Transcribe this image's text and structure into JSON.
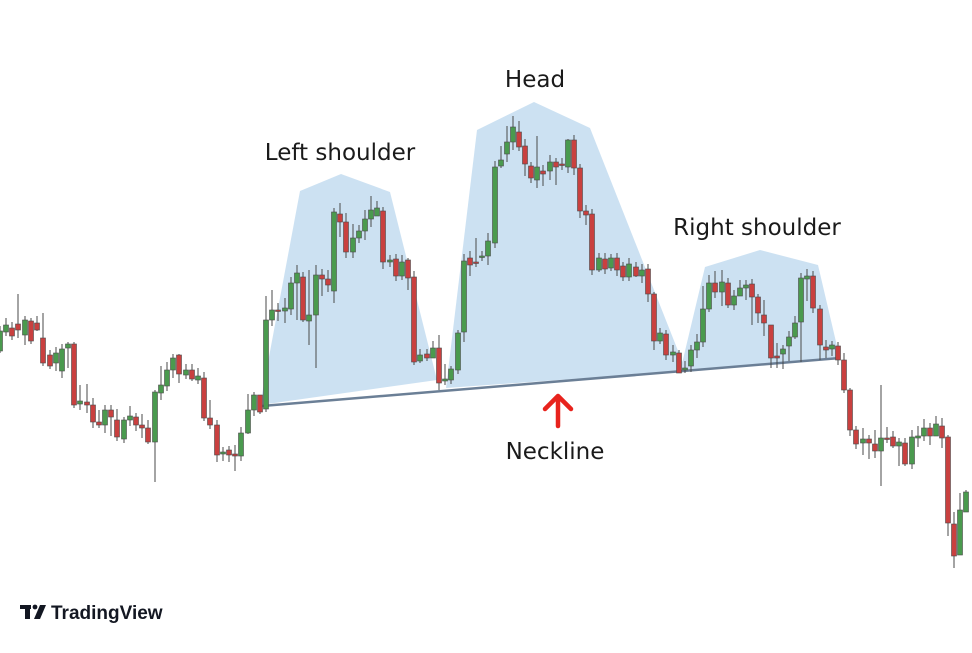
{
  "chart_data": {
    "type": "candlestick",
    "pattern": "head-and-shoulders",
    "colors": {
      "up": "#4a9a4e",
      "down": "#c9403f",
      "wick": "#4a4a4a",
      "pattern_fill": "#c9dff1",
      "neckline": "#6b7f96",
      "arrow": "#e8231d"
    },
    "annotations": {
      "left_shoulder": "Left shoulder",
      "head": "Head",
      "right_shoulder": "Right shoulder",
      "neckline": "Neckline"
    },
    "candles": [
      [
        0,
        351,
        331,
        353,
        326
      ],
      [
        6,
        332,
        325,
        336,
        318
      ],
      [
        12,
        328,
        336,
        340,
        322
      ],
      [
        18,
        324,
        330,
        338,
        294
      ],
      [
        25,
        335,
        320,
        345,
        316
      ],
      [
        31,
        321,
        341,
        344,
        318
      ],
      [
        37,
        323,
        330,
        331,
        316
      ],
      [
        43,
        338,
        363,
        366,
        313
      ],
      [
        50,
        355,
        366,
        369,
        350
      ],
      [
        56,
        363,
        353,
        371,
        347
      ],
      [
        62,
        371,
        349,
        378,
        344
      ],
      [
        68,
        348,
        344,
        368,
        342
      ],
      [
        74,
        344,
        405,
        408,
        342
      ],
      [
        80,
        404,
        401,
        410,
        385
      ],
      [
        87,
        402,
        405,
        413,
        384
      ],
      [
        93,
        405,
        422,
        428,
        398
      ],
      [
        99,
        422,
        425,
        428,
        410
      ],
      [
        105,
        425,
        410,
        433,
        405
      ],
      [
        111,
        410,
        417,
        436,
        405
      ],
      [
        117,
        420,
        437,
        441,
        409
      ],
      [
        124,
        439,
        420,
        443,
        417
      ],
      [
        130,
        420,
        416,
        426,
        406
      ],
      [
        136,
        417,
        425,
        431,
        413
      ],
      [
        142,
        425,
        428,
        438,
        414
      ],
      [
        148,
        428,
        442,
        444,
        420
      ],
      [
        155,
        442,
        392,
        482,
        390
      ],
      [
        161,
        393,
        385,
        400,
        366
      ],
      [
        167,
        386,
        370,
        391,
        362
      ],
      [
        173,
        370,
        358,
        378,
        354
      ],
      [
        179,
        355,
        374,
        383,
        354
      ],
      [
        186,
        375,
        370,
        379,
        364
      ],
      [
        192,
        370,
        379,
        381,
        364
      ],
      [
        198,
        380,
        376,
        384,
        368
      ],
      [
        204,
        378,
        418,
        421,
        372
      ],
      [
        210,
        418,
        425,
        429,
        400
      ],
      [
        217,
        425,
        455,
        462,
        420
      ],
      [
        223,
        454,
        452,
        461,
        447
      ],
      [
        229,
        450,
        455,
        462,
        446
      ],
      [
        235,
        454,
        456,
        471,
        445
      ],
      [
        241,
        456,
        433,
        461,
        427
      ],
      [
        248,
        433,
        410,
        434,
        394
      ],
      [
        254,
        410,
        395,
        416,
        392
      ],
      [
        260,
        395,
        412,
        414,
        395
      ],
      [
        266,
        409,
        320,
        412,
        296
      ],
      [
        272,
        320,
        310,
        326,
        290
      ],
      [
        278,
        310,
        311,
        321,
        303
      ],
      [
        285,
        311,
        308,
        323,
        298
      ],
      [
        291,
        309,
        283,
        315,
        277
      ],
      [
        297,
        283,
        273,
        320,
        265
      ],
      [
        303,
        277,
        320,
        322,
        272
      ],
      [
        309,
        321,
        315,
        345,
        270
      ],
      [
        316,
        315,
        275,
        368,
        265
      ],
      [
        322,
        275,
        279,
        296,
        269
      ],
      [
        328,
        279,
        285,
        292,
        270
      ],
      [
        334,
        291,
        212,
        303,
        208
      ],
      [
        340,
        214,
        222,
        237,
        203
      ],
      [
        346,
        222,
        252,
        258,
        213
      ],
      [
        353,
        252,
        238,
        258,
        224
      ],
      [
        359,
        238,
        231,
        243,
        225
      ],
      [
        365,
        231,
        219,
        240,
        210
      ],
      [
        371,
        219,
        210,
        227,
        196
      ],
      [
        377,
        216,
        208,
        215,
        201
      ],
      [
        383,
        211,
        262,
        269,
        207
      ],
      [
        390,
        262,
        260,
        267,
        255
      ],
      [
        396,
        259,
        276,
        281,
        254
      ],
      [
        402,
        276,
        262,
        280,
        255
      ],
      [
        408,
        260,
        278,
        290,
        258
      ],
      [
        414,
        277,
        362,
        365,
        271
      ],
      [
        420,
        361,
        355,
        363,
        349
      ],
      [
        427,
        354,
        358,
        361,
        349
      ],
      [
        433,
        358,
        348,
        358,
        341
      ],
      [
        439,
        348,
        383,
        390,
        335
      ],
      [
        445,
        381,
        379,
        385,
        364
      ],
      [
        451,
        380,
        369,
        384,
        366
      ],
      [
        458,
        370,
        333,
        374,
        330
      ],
      [
        464,
        332,
        261,
        342,
        254
      ],
      [
        470,
        258,
        265,
        276,
        251
      ],
      [
        476,
        262,
        262,
        267,
        238
      ],
      [
        482,
        257,
        256,
        261,
        251
      ],
      [
        488,
        256,
        241,
        265,
        233
      ],
      [
        495,
        243,
        167,
        248,
        161
      ],
      [
        501,
        166,
        160,
        168,
        146
      ],
      [
        507,
        154,
        142,
        162,
        126
      ],
      [
        513,
        142,
        127,
        150,
        116
      ],
      [
        519,
        132,
        147,
        151,
        121
      ],
      [
        525,
        146,
        164,
        176,
        139
      ],
      [
        531,
        166,
        178,
        183,
        162
      ],
      [
        537,
        180,
        167,
        188,
        136
      ],
      [
        543,
        171,
        174,
        186,
        165
      ],
      [
        550,
        171,
        162,
        180,
        155
      ],
      [
        556,
        162,
        167,
        185,
        158
      ],
      [
        562,
        164,
        165,
        170,
        158
      ],
      [
        568,
        167,
        140,
        173,
        139
      ],
      [
        574,
        140,
        168,
        175,
        135
      ],
      [
        580,
        168,
        211,
        218,
        164
      ],
      [
        586,
        211,
        215,
        225,
        205
      ],
      [
        592,
        214,
        270,
        275,
        209
      ],
      [
        599,
        270,
        258,
        272,
        253
      ],
      [
        605,
        259,
        269,
        274,
        253
      ],
      [
        611,
        268,
        258,
        271,
        254
      ],
      [
        617,
        258,
        270,
        276,
        253
      ],
      [
        623,
        266,
        277,
        281,
        262
      ],
      [
        629,
        277,
        264,
        281,
        258
      ],
      [
        636,
        267,
        276,
        277,
        262
      ],
      [
        642,
        276,
        270,
        283,
        264
      ],
      [
        648,
        269,
        294,
        302,
        264
      ],
      [
        654,
        294,
        341,
        350,
        292
      ],
      [
        660,
        341,
        333,
        344,
        328
      ],
      [
        666,
        334,
        355,
        360,
        330
      ],
      [
        673,
        355,
        352,
        362,
        345
      ],
      [
        679,
        353,
        373,
        373,
        350
      ],
      [
        685,
        370,
        368,
        373,
        361
      ],
      [
        691,
        366,
        350,
        372,
        345
      ],
      [
        697,
        350,
        342,
        358,
        334
      ],
      [
        703,
        342,
        309,
        347,
        286
      ],
      [
        709,
        309,
        283,
        312,
        275
      ],
      [
        715,
        283,
        292,
        298,
        271
      ],
      [
        722,
        292,
        282,
        306,
        270
      ],
      [
        728,
        283,
        305,
        308,
        278
      ],
      [
        734,
        305,
        296,
        310,
        290
      ],
      [
        740,
        296,
        288,
        294,
        280
      ],
      [
        746,
        288,
        285,
        300,
        280
      ],
      [
        752,
        284,
        297,
        325,
        279
      ],
      [
        758,
        297,
        313,
        323,
        294
      ],
      [
        764,
        315,
        323,
        336,
        300
      ],
      [
        771,
        325,
        358,
        368,
        325
      ],
      [
        777,
        356,
        358,
        368,
        343
      ],
      [
        783,
        354,
        349,
        369,
        345
      ],
      [
        789,
        346,
        337,
        361,
        331
      ],
      [
        795,
        337,
        323,
        339,
        316
      ],
      [
        801,
        322,
        278,
        362,
        273
      ],
      [
        807,
        279,
        276,
        301,
        269
      ],
      [
        813,
        276,
        308,
        313,
        271
      ],
      [
        820,
        309,
        345,
        360,
        305
      ],
      [
        826,
        347,
        350,
        358,
        340
      ],
      [
        832,
        349,
        345,
        356,
        341
      ],
      [
        838,
        346,
        360,
        365,
        342
      ],
      [
        844,
        360,
        390,
        393,
        353
      ],
      [
        850,
        390,
        430,
        436,
        388
      ],
      [
        856,
        430,
        444,
        449,
        426
      ],
      [
        863,
        443,
        439,
        455,
        428
      ],
      [
        869,
        439,
        443,
        459,
        435
      ],
      [
        875,
        444,
        451,
        458,
        430
      ],
      [
        881,
        451,
        438,
        486,
        385
      ],
      [
        887,
        438,
        438,
        443,
        427
      ],
      [
        893,
        437,
        446,
        448,
        431
      ],
      [
        899,
        446,
        442,
        466,
        438
      ],
      [
        905,
        443,
        464,
        466,
        438
      ],
      [
        912,
        464,
        437,
        469,
        430
      ],
      [
        918,
        438,
        436,
        447,
        426
      ],
      [
        924,
        436,
        428,
        441,
        419
      ],
      [
        930,
        428,
        436,
        445,
        423
      ],
      [
        936,
        436,
        424,
        434,
        416
      ],
      [
        942,
        426,
        438,
        448,
        418
      ],
      [
        948,
        437,
        523,
        536,
        435
      ],
      [
        954,
        524,
        556,
        568,
        512
      ],
      [
        960,
        555,
        510,
        555,
        493
      ],
      [
        966,
        512,
        492,
        510,
        490
      ]
    ]
  }
}
